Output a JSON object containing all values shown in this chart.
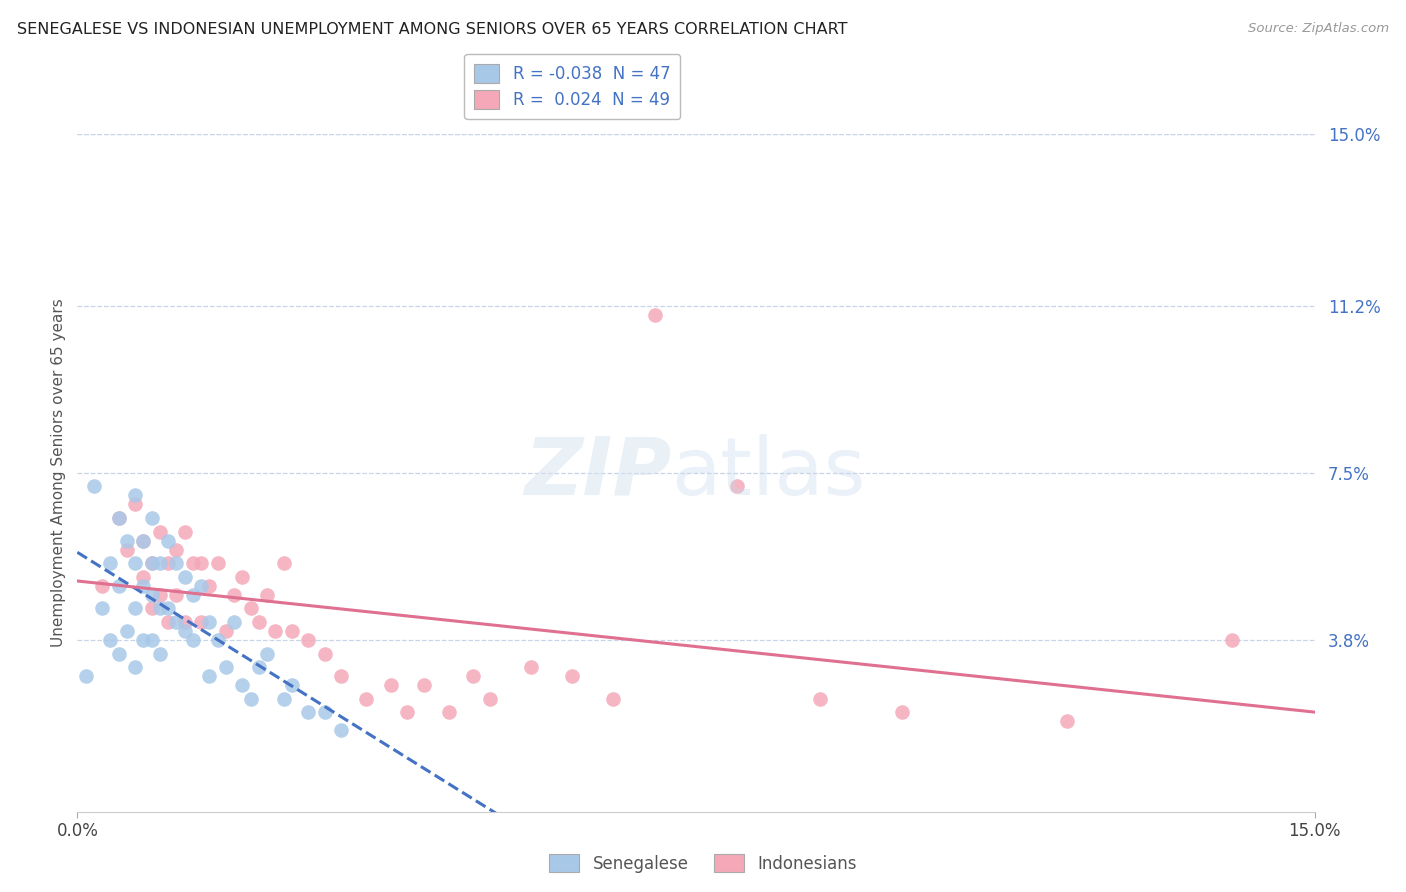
{
  "title": "SENEGALESE VS INDONESIAN UNEMPLOYMENT AMONG SENIORS OVER 65 YEARS CORRELATION CHART",
  "source": "Source: ZipAtlas.com",
  "ylabel": "Unemployment Among Seniors over 65 years",
  "xlim": [
    0,
    0.15
  ],
  "ylim": [
    0,
    0.15
  ],
  "ytick_labels_right": [
    "15.0%",
    "11.2%",
    "7.5%",
    "3.8%"
  ],
  "ytick_values_right": [
    0.15,
    0.112,
    0.075,
    0.038
  ],
  "legend_R_blue": "R = -0.038",
  "legend_N_blue": "N = 47",
  "legend_R_pink": "R =  0.024",
  "legend_N_pink": "N = 49",
  "bottom_legend_blue": "Senegalese",
  "bottom_legend_pink": "Indonesians",
  "blue_line_color": "#4472c4",
  "pink_line_color": "#e07090",
  "scatter_blue": "#a8c8e8",
  "scatter_pink": "#f4a8b8",
  "grid_color": "#c8d4e8",
  "background_color": "#ffffff",
  "senegalese_x": [
    0.001,
    0.002,
    0.003,
    0.004,
    0.004,
    0.005,
    0.005,
    0.005,
    0.006,
    0.006,
    0.007,
    0.007,
    0.007,
    0.007,
    0.008,
    0.008,
    0.008,
    0.009,
    0.009,
    0.009,
    0.009,
    0.01,
    0.01,
    0.01,
    0.011,
    0.011,
    0.012,
    0.012,
    0.013,
    0.013,
    0.014,
    0.014,
    0.015,
    0.016,
    0.016,
    0.017,
    0.018,
    0.019,
    0.02,
    0.021,
    0.022,
    0.023,
    0.025,
    0.026,
    0.028,
    0.03,
    0.032
  ],
  "senegalese_y": [
    0.03,
    0.072,
    0.045,
    0.055,
    0.038,
    0.065,
    0.05,
    0.035,
    0.06,
    0.04,
    0.07,
    0.055,
    0.045,
    0.032,
    0.06,
    0.05,
    0.038,
    0.065,
    0.055,
    0.048,
    0.038,
    0.055,
    0.045,
    0.035,
    0.06,
    0.045,
    0.055,
    0.042,
    0.052,
    0.04,
    0.048,
    0.038,
    0.05,
    0.042,
    0.03,
    0.038,
    0.032,
    0.042,
    0.028,
    0.025,
    0.032,
    0.035,
    0.025,
    0.028,
    0.022,
    0.022,
    0.018
  ],
  "indonesian_x": [
    0.003,
    0.005,
    0.006,
    0.007,
    0.008,
    0.008,
    0.009,
    0.009,
    0.01,
    0.01,
    0.011,
    0.011,
    0.012,
    0.012,
    0.013,
    0.013,
    0.014,
    0.015,
    0.015,
    0.016,
    0.017,
    0.018,
    0.019,
    0.02,
    0.021,
    0.022,
    0.023,
    0.024,
    0.025,
    0.026,
    0.028,
    0.03,
    0.032,
    0.035,
    0.038,
    0.04,
    0.042,
    0.045,
    0.048,
    0.05,
    0.055,
    0.06,
    0.065,
    0.07,
    0.08,
    0.09,
    0.1,
    0.12,
    0.14
  ],
  "indonesian_y": [
    0.05,
    0.065,
    0.058,
    0.068,
    0.052,
    0.06,
    0.055,
    0.045,
    0.062,
    0.048,
    0.055,
    0.042,
    0.058,
    0.048,
    0.062,
    0.042,
    0.055,
    0.055,
    0.042,
    0.05,
    0.055,
    0.04,
    0.048,
    0.052,
    0.045,
    0.042,
    0.048,
    0.04,
    0.055,
    0.04,
    0.038,
    0.035,
    0.03,
    0.025,
    0.028,
    0.022,
    0.028,
    0.022,
    0.03,
    0.025,
    0.032,
    0.03,
    0.025,
    0.11,
    0.072,
    0.025,
    0.022,
    0.02,
    0.038
  ]
}
